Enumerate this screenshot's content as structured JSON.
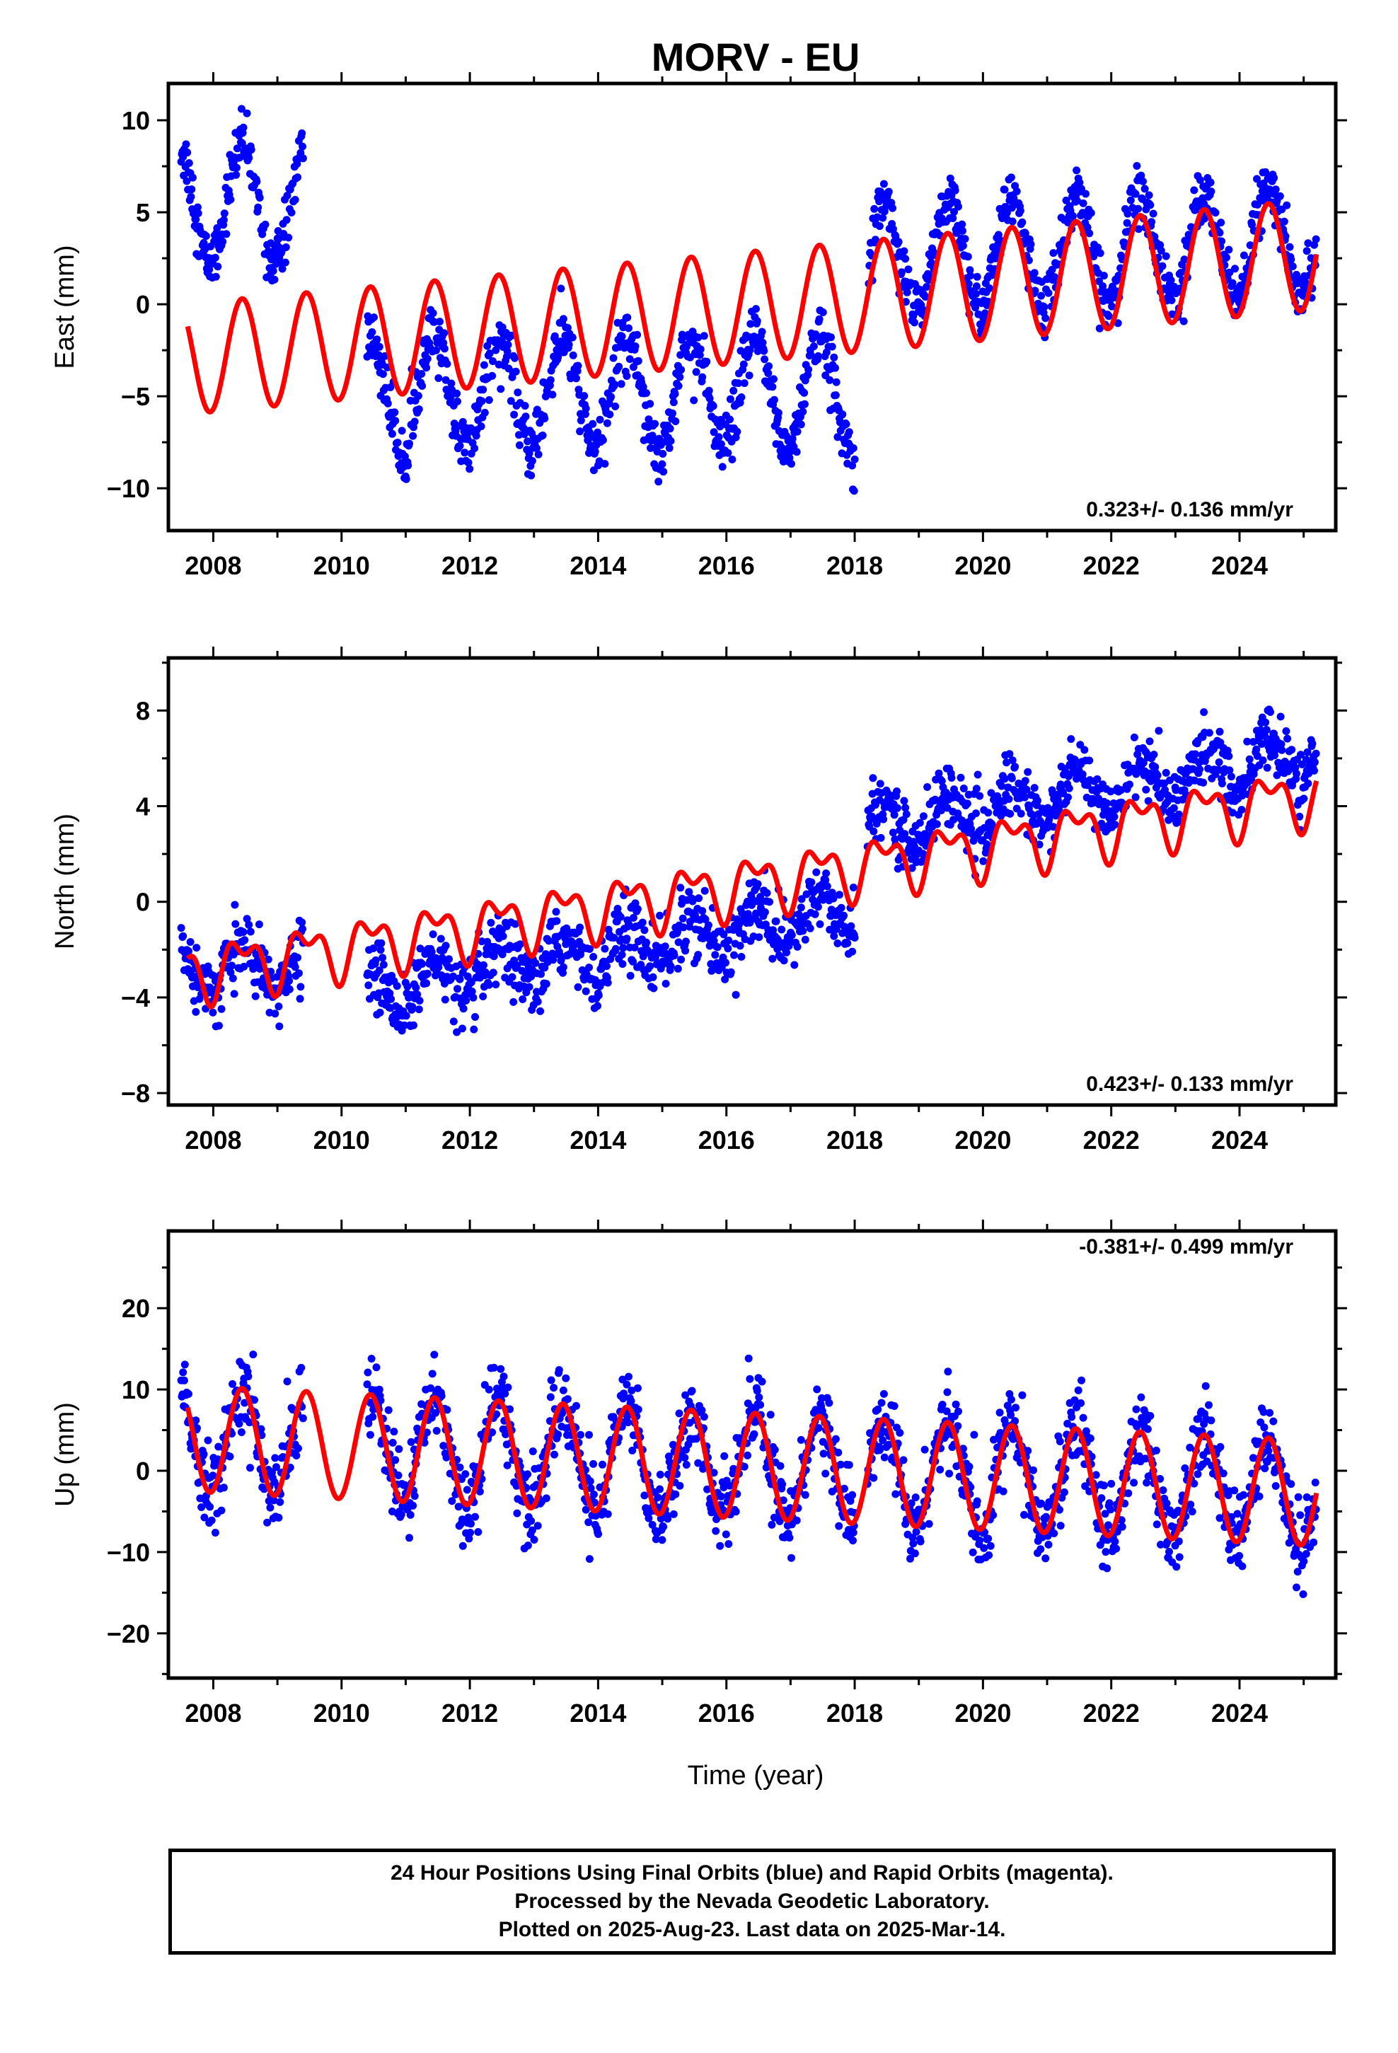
{
  "title": "MORV - EU",
  "xlabel": "Time (year)",
  "footer": {
    "line1": "24 Hour Positions Using Final Orbits (blue) and Rapid Orbits (magenta).",
    "line2": "Processed by the Nevada Geodetic Laboratory.",
    "line3": "Plotted on 2025-Aug-23. Last data on 2025-Mar-14."
  },
  "colors": {
    "data": "#0000ff",
    "fit": "#ff0000",
    "frame": "#000000"
  },
  "chart_data": [
    {
      "type": "scatter",
      "ylabel": "East (mm)",
      "rate_label": "0.323+/- 0.136 mm/yr",
      "xlim": [
        2007.3,
        2025.5
      ],
      "ylim": [
        -12.3,
        12
      ],
      "xticks": [
        2008,
        2010,
        2012,
        2014,
        2016,
        2018,
        2020,
        2022,
        2024
      ],
      "yticks": [
        -10,
        -5,
        0,
        5,
        10
      ],
      "data_segments": [
        {
          "x": [
            2007.5,
            2009.4
          ],
          "offset": 5.5,
          "amplitude": 3.2,
          "trend": 0.0,
          "noise": 1.4
        },
        {
          "x": [
            2010.4,
            2018.0
          ],
          "offset": -4.8,
          "amplitude": 3.0,
          "trend": 0.0,
          "noise": 1.5
        },
        {
          "x": [
            2018.2,
            2025.2
          ],
          "offset": 2.5,
          "amplitude": 3.0,
          "trend": 0.15,
          "noise": 1.4
        }
      ],
      "fit": {
        "x_range": [
          2007.6,
          2025.2
        ],
        "y_at_2007_5": -3.0,
        "rate": 0.323,
        "annual_amplitude": 3.0,
        "semiannual_amplitude": 0.0
      }
    },
    {
      "type": "scatter",
      "ylabel": "North (mm)",
      "rate_label": "0.423+/- 0.133 mm/yr",
      "xlim": [
        2007.3,
        2025.5
      ],
      "ylim": [
        -8.5,
        10.2
      ],
      "xticks": [
        2008,
        2010,
        2012,
        2014,
        2016,
        2018,
        2020,
        2022,
        2024
      ],
      "yticks": [
        -8,
        -4,
        0,
        4,
        8
      ],
      "data_segments": [
        {
          "x": [
            2007.5,
            2009.4
          ],
          "offset": -2.8,
          "amplitude": 1.0,
          "trend": 0.0,
          "noise": 1.2
        },
        {
          "x": [
            2010.4,
            2018.0
          ],
          "offset": -3.8,
          "amplitude": 0.8,
          "trend": 0.45,
          "noise": 1.3
        },
        {
          "x": [
            2018.2,
            2025.2
          ],
          "offset": 3.0,
          "amplitude": 1.0,
          "trend": 0.45,
          "noise": 1.2
        }
      ],
      "fit": {
        "x_range": [
          2007.6,
          2025.2
        ],
        "y_at_2007_5": -3.0,
        "rate": 0.423,
        "annual_amplitude": 1.0,
        "semiannual_amplitude": 0.6
      }
    },
    {
      "type": "scatter",
      "ylabel": "Up (mm)",
      "rate_label": "-0.381+/- 0.499 mm/yr",
      "xlim": [
        2007.3,
        2025.5
      ],
      "ylim": [
        -25.5,
        29.5
      ],
      "xticks": [
        2008,
        2010,
        2012,
        2014,
        2016,
        2018,
        2020,
        2022,
        2024
      ],
      "yticks": [
        -20,
        -10,
        0,
        10,
        20
      ],
      "data_segments": [
        {
          "x": [
            2007.5,
            2009.4
          ],
          "offset": 4.0,
          "amplitude": 6.0,
          "trend": -0.38,
          "noise": 4.5
        },
        {
          "x": [
            2010.4,
            2018.0
          ],
          "offset": 3.0,
          "amplitude": 6.5,
          "trend": -0.38,
          "noise": 4.5
        },
        {
          "x": [
            2018.2,
            2025.2
          ],
          "offset": 0.0,
          "amplitude": 6.5,
          "trend": -0.38,
          "noise": 4.5
        }
      ],
      "fit": {
        "x_range": [
          2007.6,
          2025.2
        ],
        "y_at_2007_5": 4.0,
        "rate": -0.381,
        "annual_amplitude": 6.5,
        "semiannual_amplitude": 0.0
      }
    }
  ]
}
